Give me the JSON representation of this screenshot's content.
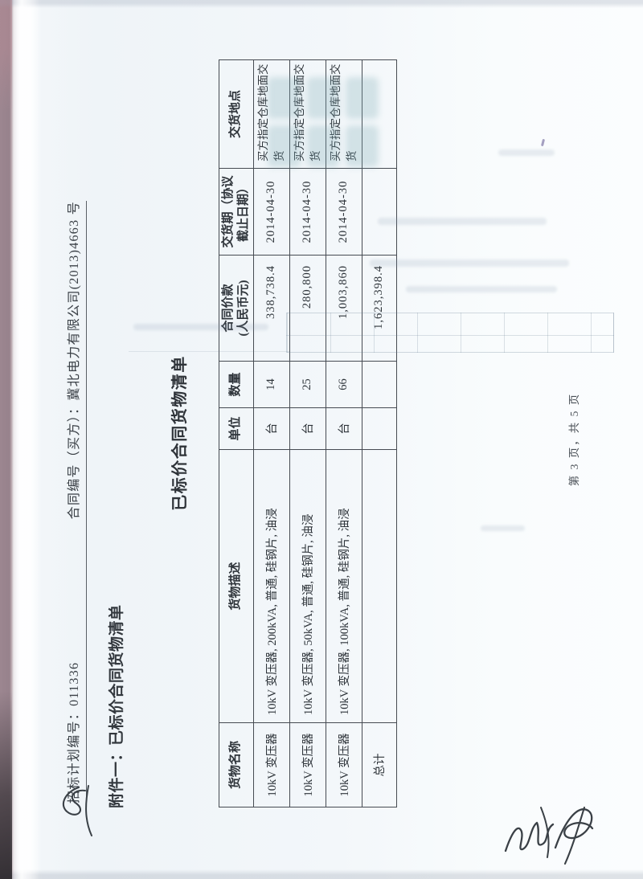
{
  "page": {
    "header_line": {
      "plan_number": "招标计划编号：011336",
      "contract_number": "合同编号（买方）：冀北电力有限公司(2013)4663 号"
    },
    "attachment_title": "附件一：已标价合同货物清单",
    "table_title": "已标价合同货物清单",
    "footer": "第 3 页，共 5 页"
  },
  "table": {
    "headers": [
      {
        "lines": [
          "货物名称"
        ]
      },
      {
        "lines": [
          "货物描述"
        ]
      },
      {
        "lines": [
          "单位"
        ]
      },
      {
        "lines": [
          "数量"
        ]
      },
      {
        "lines": [
          "合同价款",
          "(人民币元)"
        ]
      },
      {
        "lines": [
          "交货期（协议",
          "截止日期）"
        ]
      },
      {
        "lines": [
          "交货地点"
        ]
      }
    ],
    "rows": [
      {
        "cells": [
          "10kV 变压器",
          "10kV 变压器, 200kVA, 普通, 硅钢片, 油浸",
          "台",
          "14",
          "338,738.4",
          "2014-04-30",
          "买方指定仓库地面交货"
        ],
        "is_total": false
      },
      {
        "cells": [
          "10kV 变压器",
          "10kV 变压器, 50kVA, 普通, 硅钢片, 油浸",
          "台",
          "25",
          "280,800",
          "2014-04-30",
          "买方指定仓库地面交货"
        ],
        "is_total": false
      },
      {
        "cells": [
          "10kV 变压器",
          "10kV 变压器, 100kVA, 普通, 硅钢片, 油浸",
          "台",
          "66",
          "1,003,860",
          "2014-04-30",
          "买方指定仓库地面交货"
        ],
        "is_total": false
      },
      {
        "cells": [
          "总计",
          "",
          "",
          "",
          "1,623,398.4",
          "",
          ""
        ],
        "is_total": true
      }
    ]
  },
  "colors": {
    "ink": "#2f353b",
    "paper": "#f3f7fa",
    "table_border": "#464b52",
    "spine_strip": "#9c8690"
  }
}
